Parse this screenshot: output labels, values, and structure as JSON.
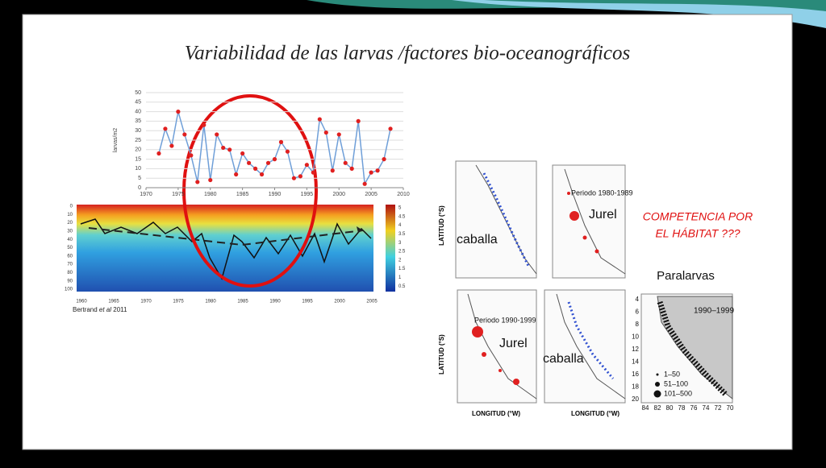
{
  "slide": {
    "title": "Variabilidad de las larvas /factores bio-oceanográficos",
    "competition": [
      "COMPETENCIA POR",
      "EL HÁBITAT ???"
    ],
    "paralarvas": "Paralarvas"
  },
  "chart_data": {
    "type": "line",
    "y_label": "larvas/m2",
    "x": [
      1972,
      1973,
      1974,
      1975,
      1976,
      1977,
      1978,
      1979,
      1980,
      1981,
      1982,
      1983,
      1984,
      1985,
      1986,
      1987,
      1988,
      1989,
      1990,
      1991,
      1992,
      1993,
      1994,
      1995,
      1996,
      1997,
      1998,
      1999,
      2000,
      2001,
      2002,
      2003,
      2004,
      2005,
      2006,
      2007,
      2008
    ],
    "values": [
      18,
      31,
      22,
      40,
      28,
      17,
      3,
      33,
      4,
      28,
      21,
      20,
      7,
      18,
      13,
      10,
      7,
      13,
      15,
      24,
      19,
      5,
      6,
      12,
      8,
      36,
      29,
      9,
      28,
      13,
      10,
      35,
      2,
      8,
      9,
      15,
      31
    ],
    "xlim": [
      1970,
      2010
    ],
    "xticks": [
      1970,
      1975,
      1980,
      1985,
      1990,
      1995,
      2000,
      2005,
      2010
    ],
    "ylim": [
      0,
      50
    ],
    "yticks": [
      0,
      5,
      10,
      15,
      20,
      25,
      30,
      35,
      40,
      45,
      50
    ],
    "grid": true,
    "color": "#6f9fd8",
    "marker_color": "#e02020"
  },
  "heatmap": {
    "xticks": [
      "1960",
      "1965",
      "1970",
      "1975",
      "1980",
      "1985",
      "1990",
      "1995",
      "2000",
      "2005"
    ],
    "yticks": [
      "0",
      "10",
      "20",
      "30",
      "40",
      "50",
      "60",
      "70",
      "80",
      "90",
      "100"
    ],
    "colorbar": [
      "5",
      "4.5",
      "4",
      "3.5",
      "3",
      "2.5",
      "2",
      "1.5",
      "1",
      "0.5"
    ],
    "source": [
      "Bertrand ",
      "et al",
      " 2011"
    ]
  },
  "maps": {
    "lat_label": "LATITUD (°S)",
    "lon_label": "LONGITUD (°W)",
    "jurel": "Jurel",
    "caballa": "caballa",
    "period_1": "Periodo 1980-1989",
    "period_2": "Periodo 1990-1999",
    "para_period": "1990–1999",
    "para_legend": [
      "1–50",
      "51–100",
      "101–500"
    ],
    "para_xticks": [
      "84",
      "82",
      "80",
      "78",
      "76",
      "74",
      "72",
      "70"
    ],
    "para_yticks": [
      "4",
      "6",
      "8",
      "10",
      "12",
      "14",
      "16",
      "18",
      "20"
    ]
  }
}
